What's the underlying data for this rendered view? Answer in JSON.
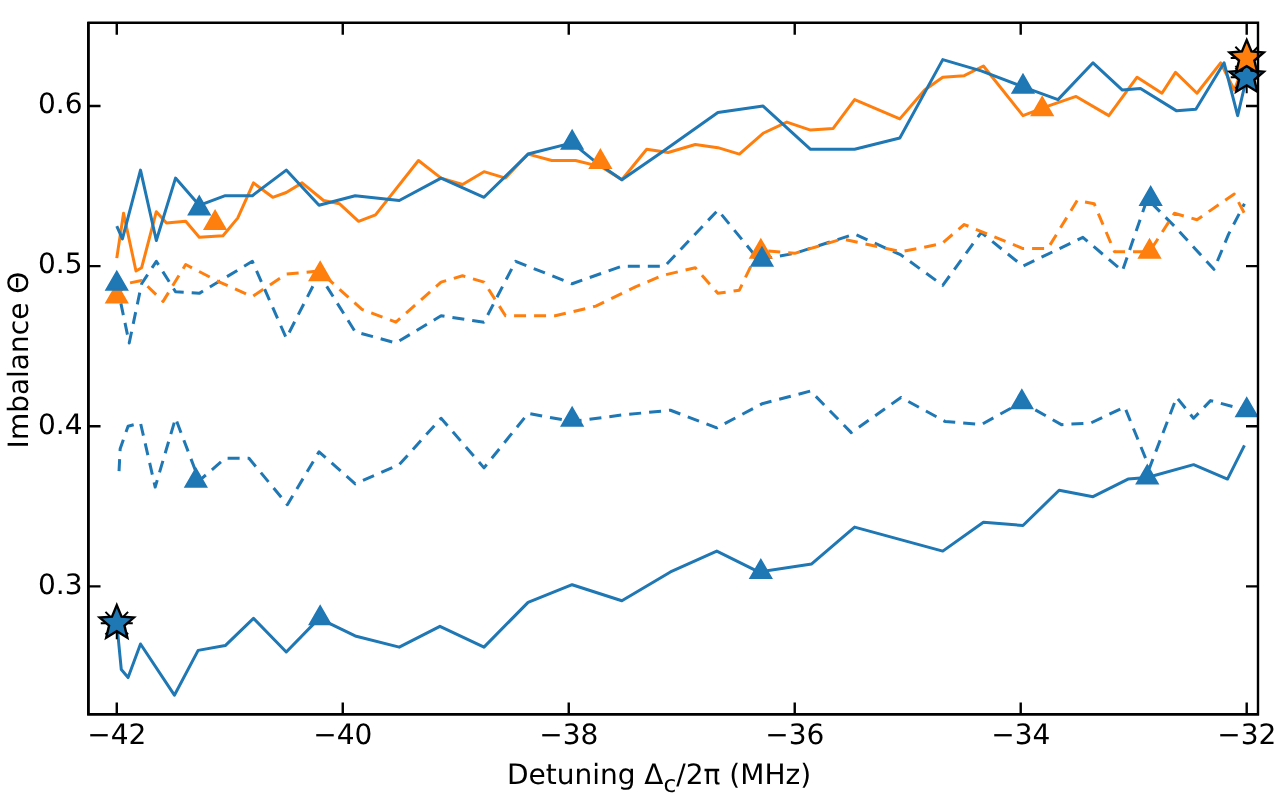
{
  "chart_data": {
    "type": "line",
    "xlabel": "Detuning Δ$_{c}$/2π (MHz)",
    "ylabel": "Imbalance Θ",
    "xlim": [
      -42.25,
      -31.9
    ],
    "ylim": [
      0.22,
      0.652
    ],
    "xticks": [
      -42,
      -40,
      -38,
      -36,
      -34,
      -32
    ],
    "yticks": [
      0.3,
      0.4,
      0.5,
      0.6
    ],
    "grid": false,
    "legend": false,
    "series": [
      {
        "type": "line",
        "color": "#1f77b4",
        "line_style": "solid",
        "x": [
          -42.0,
          -41.95,
          -41.79,
          -41.65,
          -41.48,
          -41.27,
          -41.04,
          -40.8,
          -40.5,
          -40.21,
          -39.89,
          -39.5,
          -39.13,
          -38.75,
          -38.36,
          -37.97,
          -37.76,
          -37.53,
          -37.18,
          -36.68,
          -36.28,
          -35.86,
          -35.47,
          -35.07,
          -34.69,
          -34.35,
          -33.98,
          -33.67,
          -33.36,
          -33.1,
          -32.94,
          -32.62,
          -32.45,
          -32.2,
          -32.08,
          -32.0
        ],
        "values": [
          0.525,
          0.517,
          0.56,
          0.516,
          0.555,
          0.538,
          0.544,
          0.544,
          0.56,
          0.538,
          0.544,
          0.541,
          0.555,
          0.543,
          0.57,
          0.577,
          0.565,
          0.554,
          0.571,
          0.596,
          0.6,
          0.573,
          0.573,
          0.58,
          0.629,
          0.622,
          0.612,
          0.604,
          0.627,
          0.61,
          0.611,
          0.597,
          0.598,
          0.627,
          0.594,
          0.618
        ]
      },
      {
        "type": "line",
        "color": "#ff7f0e",
        "line_style": "solid",
        "x": [
          -42.0,
          -41.94,
          -41.83,
          -41.78,
          -41.65,
          -41.56,
          -41.39,
          -41.27,
          -41.06,
          -40.93,
          -40.79,
          -40.62,
          -40.5,
          -40.36,
          -40.17,
          -40.03,
          -39.86,
          -39.71,
          -39.33,
          -39.13,
          -38.94,
          -38.75,
          -38.56,
          -38.36,
          -38.15,
          -37.94,
          -37.71,
          -37.53,
          -37.31,
          -37.12,
          -36.88,
          -36.68,
          -36.49,
          -36.28,
          -36.07,
          -35.86,
          -35.66,
          -35.47,
          -35.07,
          -34.85,
          -34.69,
          -34.5,
          -34.33,
          -33.98,
          -33.76,
          -33.51,
          -33.22,
          -32.97,
          -32.75,
          -32.63,
          -32.44,
          -32.23,
          -32.11,
          -32.0
        ],
        "values": [
          0.505,
          0.533,
          0.497,
          0.499,
          0.534,
          0.527,
          0.528,
          0.518,
          0.519,
          0.53,
          0.552,
          0.543,
          0.546,
          0.552,
          0.541,
          0.539,
          0.528,
          0.532,
          0.566,
          0.555,
          0.551,
          0.559,
          0.555,
          0.57,
          0.566,
          0.566,
          0.562,
          0.554,
          0.573,
          0.571,
          0.576,
          0.574,
          0.57,
          0.583,
          0.59,
          0.585,
          0.586,
          0.604,
          0.592,
          0.61,
          0.618,
          0.619,
          0.625,
          0.594,
          0.6,
          0.606,
          0.594,
          0.618,
          0.608,
          0.621,
          0.608,
          0.627,
          0.61,
          0.63
        ]
      },
      {
        "type": "line",
        "color": "#ff7f0e",
        "line_style": "dashed",
        "x": [
          -42.0,
          -41.92,
          -41.78,
          -41.59,
          -41.39,
          -41.09,
          -40.8,
          -40.5,
          -40.21,
          -39.83,
          -39.53,
          -39.13,
          -38.94,
          -38.75,
          -38.56,
          -38.12,
          -37.76,
          -37.41,
          -37.18,
          -36.88,
          -36.68,
          -36.49,
          -36.32,
          -36.0,
          -35.58,
          -35.06,
          -34.7,
          -34.5,
          -33.98,
          -33.76,
          -33.5,
          -33.35,
          -33.17,
          -32.86,
          -32.64,
          -32.44,
          -32.11,
          -32.02
        ],
        "values": [
          0.481,
          0.489,
          0.491,
          0.478,
          0.501,
          0.49,
          0.481,
          0.495,
          0.497,
          0.473,
          0.465,
          0.49,
          0.494,
          0.49,
          0.469,
          0.469,
          0.475,
          0.487,
          0.494,
          0.499,
          0.483,
          0.485,
          0.51,
          0.508,
          0.517,
          0.509,
          0.514,
          0.526,
          0.511,
          0.511,
          0.541,
          0.539,
          0.509,
          0.509,
          0.533,
          0.529,
          0.545,
          0.533
        ]
      },
      {
        "type": "line",
        "color": "#1f77b4",
        "line_style": "dashed",
        "x": [
          -42.0,
          -41.89,
          -41.78,
          -41.65,
          -41.48,
          -41.27,
          -40.8,
          -40.5,
          -40.21,
          -39.89,
          -39.53,
          -39.13,
          -38.75,
          -38.47,
          -37.97,
          -37.53,
          -37.15,
          -36.68,
          -36.32,
          -36.0,
          -35.47,
          -35.06,
          -34.69,
          -34.35,
          -33.98,
          -33.45,
          -33.1,
          -32.88,
          -32.64,
          -32.29,
          -32.16,
          -32.02
        ],
        "values": [
          0.489,
          0.452,
          0.489,
          0.503,
          0.484,
          0.483,
          0.503,
          0.455,
          0.495,
          0.459,
          0.452,
          0.469,
          0.465,
          0.503,
          0.489,
          0.5,
          0.5,
          0.535,
          0.504,
          0.508,
          0.52,
          0.507,
          0.488,
          0.521,
          0.5,
          0.518,
          0.497,
          0.542,
          0.525,
          0.498,
          0.52,
          0.539
        ]
      },
      {
        "type": "line",
        "color": "#1f77b4",
        "line_style": "dashed",
        "x": [
          -41.98,
          -41.97,
          -41.9,
          -41.79,
          -41.66,
          -41.48,
          -41.27,
          -41.04,
          -40.83,
          -40.49,
          -40.21,
          -39.89,
          -39.5,
          -39.13,
          -38.75,
          -38.36,
          -37.97,
          -37.53,
          -37.1,
          -36.69,
          -36.29,
          -35.86,
          -35.5,
          -35.06,
          -34.67,
          -34.35,
          -33.99,
          -33.64,
          -33.38,
          -33.08,
          -32.86,
          -32.62,
          -32.47,
          -32.32,
          -32.0
        ],
        "values": [
          0.372,
          0.386,
          0.4,
          0.402,
          0.362,
          0.405,
          0.366,
          0.38,
          0.38,
          0.351,
          0.384,
          0.364,
          0.376,
          0.405,
          0.374,
          0.408,
          0.403,
          0.407,
          0.41,
          0.399,
          0.414,
          0.422,
          0.396,
          0.418,
          0.403,
          0.401,
          0.415,
          0.401,
          0.402,
          0.412,
          0.374,
          0.418,
          0.405,
          0.416,
          0.41
        ]
      },
      {
        "type": "line",
        "color": "#1f77b4",
        "line_style": "solid",
        "x": [
          -42.0,
          -41.96,
          -41.9,
          -41.79,
          -41.49,
          -41.28,
          -41.04,
          -40.79,
          -40.5,
          -40.21,
          -39.89,
          -39.5,
          -39.14,
          -38.75,
          -38.36,
          -37.97,
          -37.53,
          -37.1,
          -36.69,
          -36.32,
          -35.85,
          -35.47,
          -34.69,
          -34.33,
          -33.98,
          -33.66,
          -33.36,
          -33.05,
          -32.88,
          -32.47,
          -32.17,
          -32.02
        ],
        "values": [
          0.277,
          0.248,
          0.243,
          0.264,
          0.232,
          0.26,
          0.263,
          0.28,
          0.259,
          0.28,
          0.269,
          0.262,
          0.275,
          0.262,
          0.29,
          0.301,
          0.291,
          0.309,
          0.322,
          0.309,
          0.314,
          0.337,
          0.322,
          0.34,
          0.338,
          0.36,
          0.356,
          0.367,
          0.368,
          0.376,
          0.367,
          0.388
        ]
      },
      {
        "type": "scatter",
        "color": "#1f77b4",
        "marker": "triangle",
        "x": [
          -41.27,
          -37.97,
          -33.98,
          -42.0,
          -36.29,
          -32.85,
          -41.3,
          -37.97,
          -33.99,
          -32.0,
          -40.2,
          -36.3,
          -32.88
        ],
        "values": [
          0.536,
          0.577,
          0.612,
          0.489,
          0.504,
          0.542,
          0.366,
          0.404,
          0.415,
          0.41,
          0.28,
          0.309,
          0.368
        ]
      },
      {
        "type": "scatter",
        "color": "#ff7f0e",
        "marker": "triangle",
        "x": [
          -41.13,
          -37.72,
          -33.81,
          -42.0,
          -40.2,
          -36.3,
          -32.86
        ],
        "values": [
          0.527,
          0.565,
          0.598,
          0.481,
          0.495,
          0.509,
          0.509
        ]
      },
      {
        "type": "scatter",
        "color": "#1f77b4",
        "marker": "star",
        "x": [
          -42.0,
          -32.0
        ],
        "values": [
          0.277,
          0.618
        ]
      },
      {
        "type": "scatter",
        "color": "#ff7f0e",
        "marker": "star",
        "x": [
          -32.0
        ],
        "values": [
          0.63
        ]
      }
    ]
  }
}
